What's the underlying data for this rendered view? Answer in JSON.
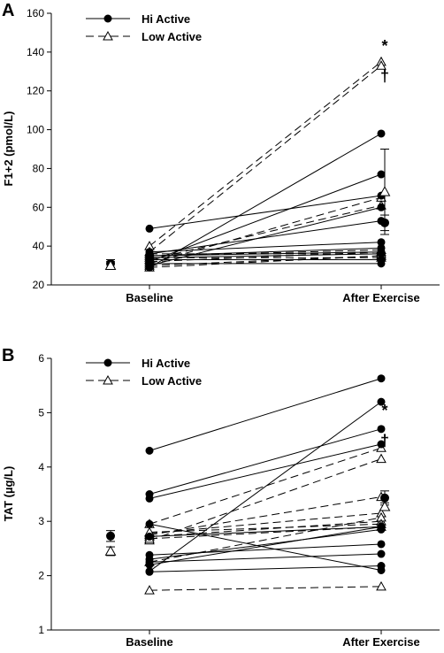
{
  "chart_data": [
    {
      "type": "line",
      "panel_label": "A",
      "ylabel": "F1+2 (pmol/L)",
      "ylim": [
        20,
        160
      ],
      "yticks": [
        20,
        40,
        60,
        80,
        100,
        120,
        140,
        160
      ],
      "categories": [
        "Baseline",
        "After Exercise"
      ],
      "legend": [
        {
          "name": "Hi Active",
          "marker": "filled-circle",
          "line": "solid"
        },
        {
          "name": "Low Active",
          "marker": "open-triangle",
          "line": "dashed"
        }
      ],
      "legend_position": "top-left",
      "hi_active": [
        [
          49,
          66
        ],
        [
          29,
          98
        ],
        [
          32,
          77
        ],
        [
          30,
          60
        ],
        [
          36,
          53
        ],
        [
          37,
          42
        ],
        [
          35,
          39
        ],
        [
          33,
          33
        ],
        [
          31,
          31
        ],
        [
          34,
          36
        ],
        [
          35,
          37
        ]
      ],
      "low_active": [
        [
          40,
          135
        ],
        [
          37,
          133
        ],
        [
          31,
          65
        ],
        [
          33,
          61
        ],
        [
          35,
          38
        ],
        [
          30,
          35
        ],
        [
          32,
          37
        ],
        [
          29,
          35
        ],
        [
          36,
          36
        ],
        [
          34,
          34
        ]
      ],
      "summary": [
        {
          "group": "Hi Active",
          "x": "Baseline",
          "mean": 31,
          "err": 2
        },
        {
          "group": "Low Active",
          "x": "Baseline",
          "mean": 30,
          "err": 2
        },
        {
          "group": "Hi Active",
          "x": "After Exercise",
          "mean": 52,
          "err": 4
        },
        {
          "group": "Low Active",
          "x": "After Exercise",
          "mean": 68,
          "err": 22
        }
      ],
      "annotations": [
        "*",
        "†"
      ]
    },
    {
      "type": "line",
      "panel_label": "B",
      "ylabel": "TAT (µg/L)",
      "ylim": [
        1,
        6
      ],
      "yticks": [
        1,
        2,
        3,
        4,
        5,
        6
      ],
      "categories": [
        "Baseline",
        "After Exercise"
      ],
      "legend": [
        {
          "name": "Hi Active",
          "marker": "filled-circle",
          "line": "solid"
        },
        {
          "name": "Low Active",
          "marker": "open-triangle",
          "line": "dashed"
        }
      ],
      "legend_position": "top-left",
      "hi_active": [
        [
          4.3,
          5.63
        ],
        [
          3.5,
          4.7
        ],
        [
          3.42,
          4.42
        ],
        [
          2.08,
          5.2
        ],
        [
          2.38,
          2.58
        ],
        [
          2.25,
          2.4
        ],
        [
          2.95,
          2.1
        ],
        [
          2.3,
          2.85
        ],
        [
          2.07,
          2.18
        ],
        [
          2.72,
          2.9
        ],
        [
          2.2,
          2.9
        ]
      ],
      "low_active": [
        [
          2.95,
          4.35
        ],
        [
          2.65,
          4.15
        ],
        [
          2.75,
          3.45
        ],
        [
          2.78,
          3.15
        ],
        [
          2.72,
          3.0
        ],
        [
          2.25,
          3.07
        ],
        [
          2.8,
          2.95
        ],
        [
          1.73,
          1.8
        ],
        [
          2.68,
          2.9
        ]
      ],
      "summary": [
        {
          "group": "Hi Active",
          "x": "Baseline",
          "mean": 2.73,
          "err": 0.1
        },
        {
          "group": "Low Active",
          "x": "Baseline",
          "mean": 2.45,
          "err": 0.08
        },
        {
          "group": "Hi Active",
          "x": "After Exercise",
          "mean": 3.43,
          "err": 0.13
        },
        {
          "group": "Low Active",
          "x": "After Exercise",
          "mean": 3.27,
          "err": 0.07
        }
      ],
      "annotations": [
        "*",
        "†"
      ]
    }
  ]
}
